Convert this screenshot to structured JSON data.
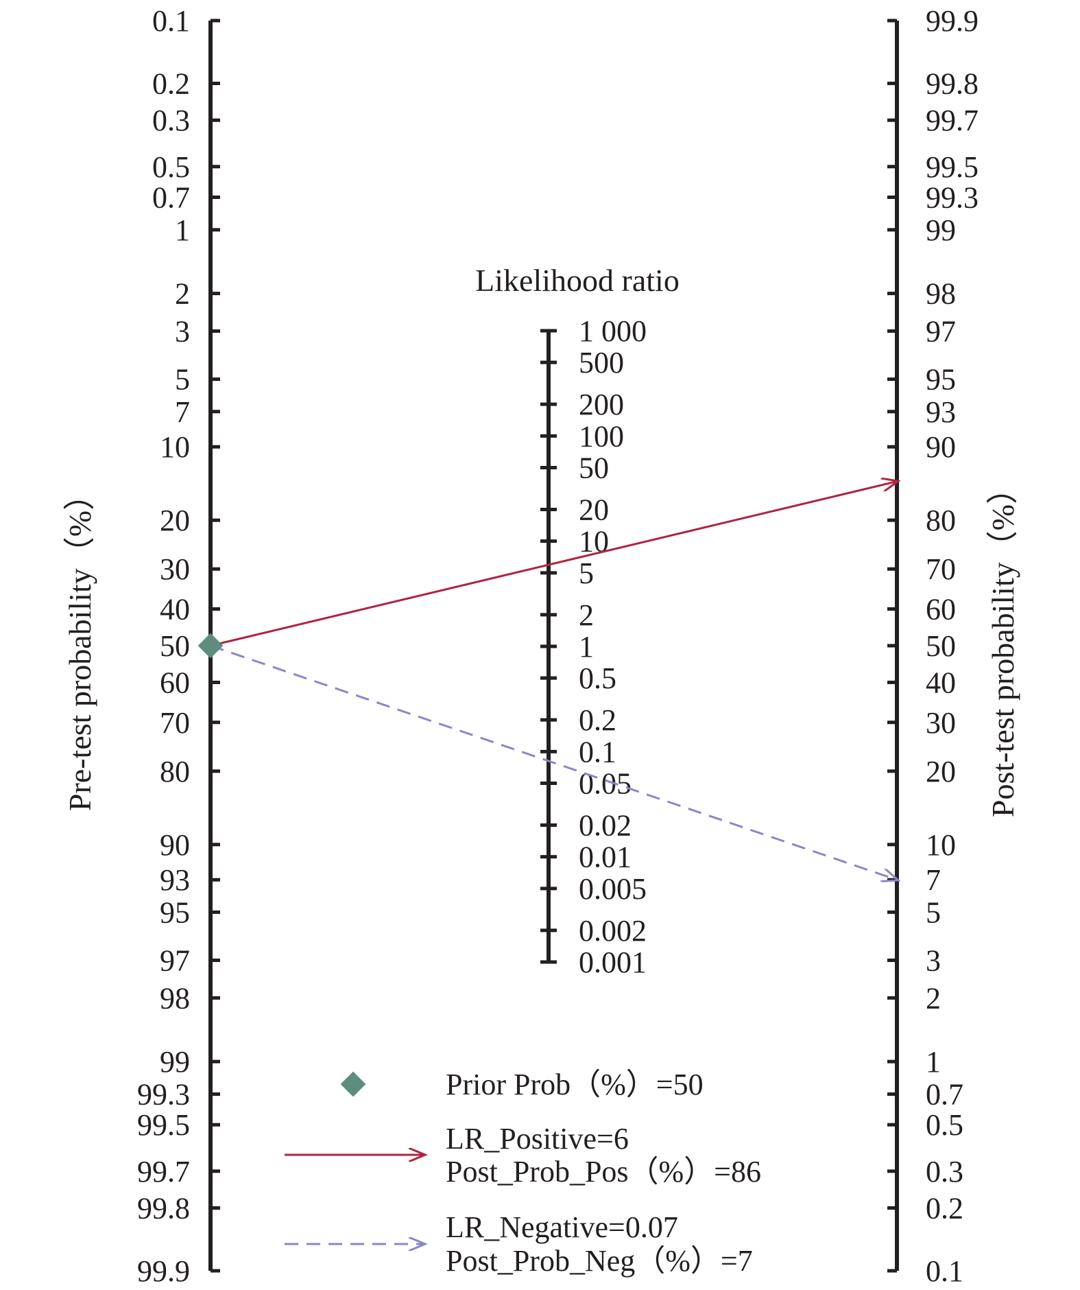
{
  "chart_data": {
    "type": "fagan-nomogram",
    "colors": {
      "axis": "#231f20",
      "prior_marker": "#5e8c7f",
      "positive_line": "#b0243f",
      "negative_line": "#8a86c8"
    },
    "pretest_axis": {
      "label": "Pre-test probability（%）",
      "ticks": [
        "0.1",
        "0.2",
        "0.3",
        "0.5",
        "0.7",
        "1",
        "2",
        "3",
        "5",
        "7",
        "10",
        "20",
        "30",
        "40",
        "50",
        "60",
        "70",
        "80",
        "90",
        "93",
        "95",
        "97",
        "98",
        "99",
        "99.3",
        "99.5",
        "99.7",
        "99.8",
        "99.9"
      ]
    },
    "lr_axis": {
      "title": "Likelihood ratio",
      "ticks": [
        "1 000",
        "500",
        "200",
        "100",
        "50",
        "20",
        "10",
        "5",
        "2",
        "1",
        "0.5",
        "0.2",
        "0.1",
        "0.05",
        "0.02",
        "0.01",
        "0.005",
        "0.002",
        "0.001"
      ]
    },
    "posttest_axis": {
      "label": "Post-test probability（%）",
      "ticks": [
        "99.9",
        "99.8",
        "99.7",
        "99.5",
        "99.3",
        "99",
        "98",
        "97",
        "95",
        "93",
        "90",
        "80",
        "70",
        "60",
        "50",
        "40",
        "30",
        "20",
        "10",
        "7",
        "5",
        "3",
        "2",
        "1",
        "0.7",
        "0.5",
        "0.3",
        "0.2",
        "0.1"
      ]
    },
    "prior_prob": 50,
    "lr_positive": 6,
    "post_prob_pos": 86,
    "lr_negative": 0.07,
    "post_prob_neg": 7,
    "legend": {
      "prior": "Prior Prob（%）=50",
      "pos_line1": "LR_Positive=6",
      "pos_line2": "Post_Prob_Pos（%）=86",
      "neg_line1": "LR_Negative=0.07",
      "neg_line2": "Post_Prob_Neg（%）=7"
    }
  }
}
